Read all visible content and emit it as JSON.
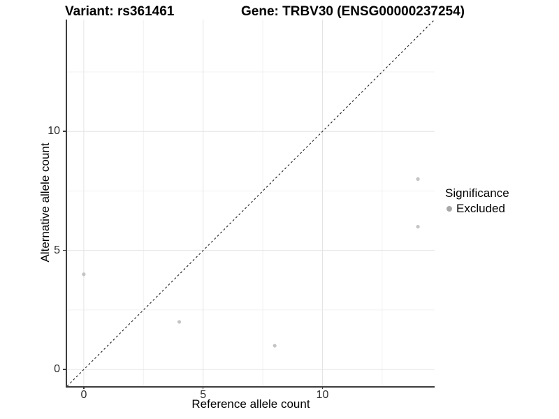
{
  "figure": {
    "titles": {
      "variant": "Variant: rs361461",
      "gene": "Gene: TRBV30 (ENSG00000237254)"
    }
  },
  "chart_data": {
    "type": "scatter",
    "title_left": "Variant: rs361461",
    "title_right": "Gene: TRBV30 (ENSG00000237254)",
    "xlabel": "Reference allele count",
    "ylabel": "Alternative allele count",
    "xlim": [
      -0.7,
      14.7
    ],
    "ylim": [
      -0.7,
      14.7
    ],
    "x_ticks": [
      0,
      5,
      10
    ],
    "y_ticks": [
      0,
      5,
      10
    ],
    "x_minor_grid": [
      2.5,
      7.5,
      12.5
    ],
    "y_minor_grid": [
      2.5,
      7.5,
      12.5
    ],
    "grid": "major and minor gridlines, white background",
    "series": [
      {
        "name": "Excluded",
        "marker": "circle",
        "color": "#c4c4c4",
        "points": [
          {
            "x": 0,
            "y": 4
          },
          {
            "x": 4,
            "y": 2
          },
          {
            "x": 8,
            "y": 1
          },
          {
            "x": 14,
            "y": 8
          },
          {
            "x": 14,
            "y": 6
          }
        ]
      }
    ],
    "reference_line": {
      "equation": "y = x",
      "style": "dashed",
      "color": "#1f1f1f"
    },
    "legend": {
      "title": "Significance",
      "position": "right",
      "items": [
        {
          "label": "Excluded",
          "marker": "circle",
          "color": "#a8a8a8"
        }
      ]
    },
    "style": {
      "grid_major_color": "#e4e4e4",
      "grid_minor_color": "#f1f1f1",
      "axis_line_color": "#3d3d3d",
      "tick_label_color": "#2e2e2e",
      "point_radius": 2.6,
      "legend_marker_radius": 4
    }
  }
}
